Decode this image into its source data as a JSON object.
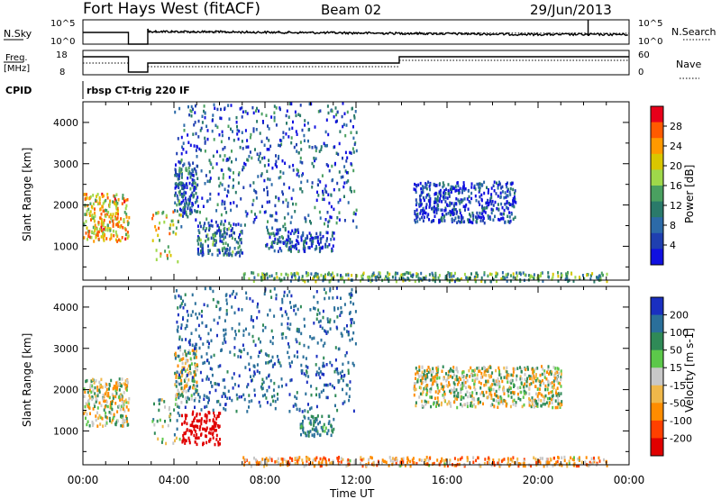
{
  "header": {
    "station": "Fort Hays West (fitACF)",
    "beam": "Beam 02",
    "date": "29/Jun/2013"
  },
  "noise_panel": {
    "left_label": "N.Sky",
    "right_label": "N.Search",
    "left_ticks": [
      "10^5",
      "10^0"
    ],
    "right_ticks": [
      "10^5",
      "10^0"
    ]
  },
  "freq_panel": {
    "left_label_1": "Freq.",
    "left_label_2": "[MHz]",
    "right_label": "Nave",
    "left_ticks": [
      "18",
      "8"
    ],
    "right_ticks": [
      "60",
      "0"
    ]
  },
  "cpid_panel": {
    "label": "CPID",
    "text": "rbsp CT-trig 220 IF"
  },
  "axes": {
    "ylabel": "Slant Range [km]",
    "yticks": [
      "4000",
      "3000",
      "2000",
      "1000"
    ],
    "xticks": [
      "00:00",
      "04:00",
      "08:00",
      "12:00",
      "16:00",
      "20:00",
      "00:00"
    ],
    "xlabel": "Time UT"
  },
  "power_scale": {
    "label": "Power [dB]",
    "ticks": [
      "28",
      "24",
      "20",
      "16",
      "12",
      "8",
      "4"
    ],
    "colors": [
      "#e8001a",
      "#ff5a00",
      "#ff9900",
      "#d9c600",
      "#9fd84a",
      "#4aa060",
      "#2a7a6a",
      "#2c6aa8",
      "#1f3fb0",
      "#1010e0"
    ]
  },
  "velocity_scale": {
    "label": "Velocity [m s-1]",
    "ticks": [
      "200",
      "100",
      "50",
      "15",
      "-15",
      "-50",
      "-100",
      "-200"
    ],
    "colors": [
      "#1a2fc0",
      "#2a6f9a",
      "#2f8a57",
      "#5cc84a",
      "#c8c8c8",
      "#f0b84a",
      "#ff8c00",
      "#ff4000",
      "#e00000"
    ]
  },
  "chart_data": {
    "type": "heatmap",
    "x_unit": "hours UT",
    "xlim": [
      0,
      24
    ],
    "ylim": [
      180,
      4500
    ],
    "blobs_power": [
      {
        "t0": 0.0,
        "t1": 2.0,
        "r0": 1150,
        "r1": 2300,
        "v": 22
      },
      {
        "t0": 3.0,
        "t1": 4.3,
        "r0": 650,
        "r1": 1900,
        "v": 20
      },
      {
        "t0": 4.0,
        "t1": 5.0,
        "r0": 1800,
        "r1": 3000,
        "v": 10
      },
      {
        "t0": 5.0,
        "t1": 7.0,
        "r0": 800,
        "r1": 1600,
        "v": 10
      },
      {
        "t0": 8.0,
        "t1": 9.5,
        "r0": 900,
        "r1": 1500,
        "v": 8
      },
      {
        "t0": 9.5,
        "t1": 11.0,
        "r0": 900,
        "r1": 1400,
        "v": 6
      },
      {
        "t0": 4.0,
        "t1": 12.0,
        "r0": 1500,
        "r1": 4500,
        "v": 8
      },
      {
        "t0": 14.5,
        "t1": 19.0,
        "r0": 1600,
        "r1": 2600,
        "v": 6
      },
      {
        "t0": 7.0,
        "t1": 23.0,
        "r0": 180,
        "r1": 400,
        "v": 14
      }
    ],
    "blobs_velocity": [
      {
        "t0": 0.0,
        "t1": 2.0,
        "r0": 1150,
        "r1": 2300,
        "v": 0
      },
      {
        "t0": 3.0,
        "t1": 4.3,
        "r0": 650,
        "r1": 1900,
        "v": 30
      },
      {
        "t0": 4.3,
        "t1": 6.0,
        "r0": 700,
        "r1": 1500,
        "v": -220
      },
      {
        "t0": 4.0,
        "t1": 5.0,
        "r0": 1800,
        "r1": 3000,
        "v": 0
      },
      {
        "t0": 9.5,
        "t1": 11.0,
        "r0": 900,
        "r1": 1400,
        "v": 80
      },
      {
        "t0": 4.0,
        "t1": 12.0,
        "r0": 1500,
        "r1": 4500,
        "v": 120
      },
      {
        "t0": 14.5,
        "t1": 21.0,
        "r0": 1600,
        "r1": 2600,
        "v": 0
      },
      {
        "t0": 7.0,
        "t1": 23.0,
        "r0": 180,
        "r1": 400,
        "v": -40
      }
    ]
  }
}
